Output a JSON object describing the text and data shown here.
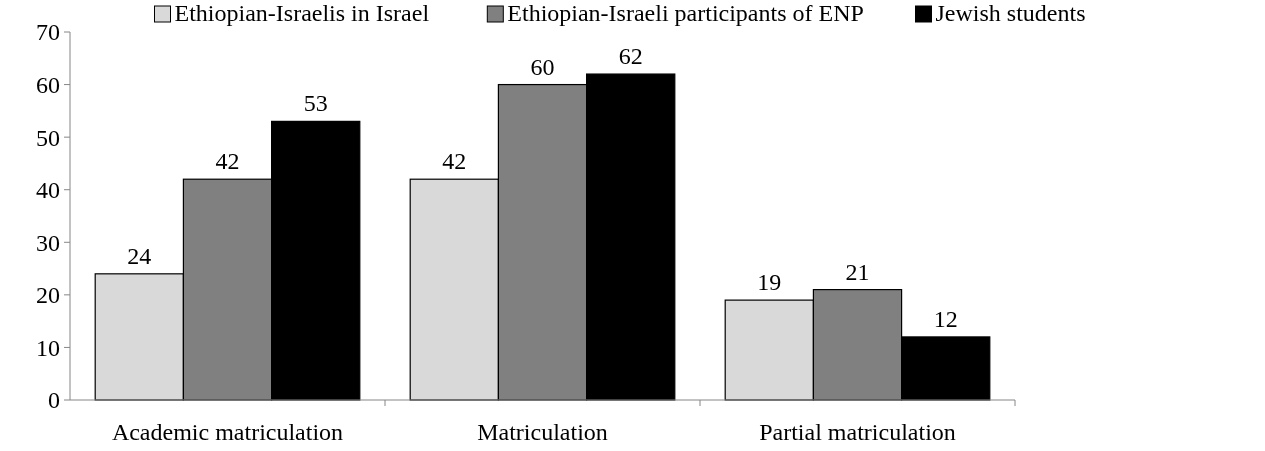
{
  "chart_data": {
    "type": "bar",
    "categories": [
      "Academic matriculation",
      "Matriculation",
      "Partial matriculation"
    ],
    "series": [
      {
        "name": "Ethiopian-Israelis in Israel",
        "color": "#d9d9d9",
        "values": [
          24,
          42,
          19
        ]
      },
      {
        "name": "Ethiopian-Israeli participants of ENP",
        "color": "#808080",
        "values": [
          42,
          60,
          21
        ]
      },
      {
        "name": "Jewish students",
        "color": "#000000",
        "values": [
          53,
          62,
          12
        ]
      }
    ],
    "ylim": [
      0,
      70
    ],
    "yticks": [
      0,
      10,
      20,
      30,
      40,
      50,
      60,
      70
    ],
    "data_labels": true,
    "legend": "top",
    "grid": false
  }
}
